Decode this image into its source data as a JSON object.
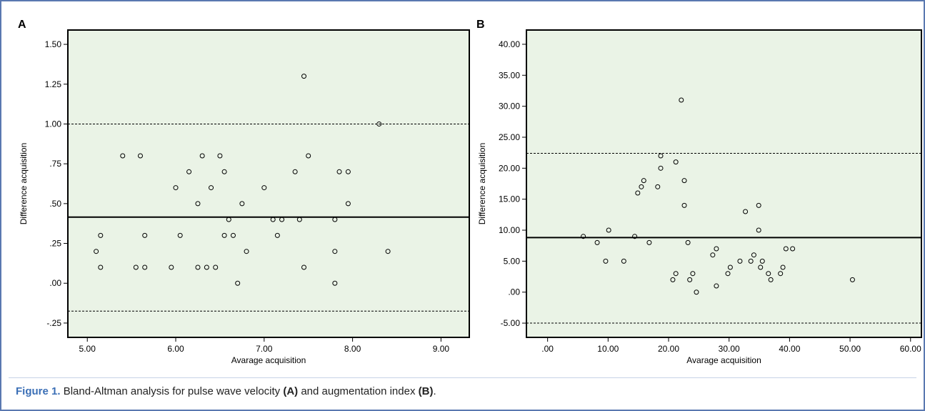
{
  "chart_data": [
    {
      "type": "scatter",
      "panel_label": "A",
      "xlabel": "Avarage acquisition",
      "ylabel": "Difference acquisition",
      "background": "#eaf3e6",
      "marker_color": "#000000",
      "x": [
        5.1,
        5.15,
        5.15,
        5.4,
        5.55,
        5.6,
        5.65,
        5.65,
        5.95,
        6.0,
        6.05,
        6.15,
        6.25,
        6.25,
        6.3,
        6.35,
        6.4,
        6.45,
        6.5,
        6.55,
        6.55,
        6.6,
        6.65,
        6.7,
        6.75,
        6.8,
        7.0,
        7.1,
        7.15,
        7.2,
        7.35,
        7.4,
        7.45,
        7.45,
        7.5,
        7.8,
        7.8,
        7.8,
        7.85,
        7.95,
        7.95,
        8.3,
        8.4
      ],
      "y": [
        0.2,
        0.3,
        0.1,
        0.8,
        0.1,
        0.8,
        0.3,
        0.1,
        0.1,
        0.6,
        0.3,
        0.7,
        0.5,
        0.1,
        0.8,
        0.1,
        0.6,
        0.1,
        0.8,
        0.7,
        0.3,
        0.4,
        0.3,
        0.0,
        0.5,
        0.2,
        0.6,
        0.4,
        0.3,
        0.4,
        0.7,
        0.4,
        1.3,
        0.1,
        0.8,
        0.4,
        0.2,
        0.0,
        0.7,
        0.7,
        0.5,
        1.0,
        0.2
      ],
      "xlim": [
        4.78,
        9.32
      ],
      "ylim": [
        -0.34,
        1.59
      ],
      "xticks": [
        {
          "value": 5,
          "label": "5.00"
        },
        {
          "value": 6,
          "label": "6.00"
        },
        {
          "value": 7,
          "label": "7.00"
        },
        {
          "value": 8,
          "label": "8.00"
        },
        {
          "value": 9,
          "label": "9.00"
        }
      ],
      "yticks": [
        {
          "value": -0.25,
          "label": "-.25"
        },
        {
          "value": 0,
          "label": ".00"
        },
        {
          "value": 0.25,
          "label": ".25"
        },
        {
          "value": 0.5,
          "label": ".50"
        },
        {
          "value": 0.75,
          "label": ".75"
        },
        {
          "value": 1,
          "label": "1.00"
        },
        {
          "value": 1.25,
          "label": "1.25"
        },
        {
          "value": 1.5,
          "label": "1.50"
        }
      ],
      "lines": [
        {
          "value": 0.415,
          "style": "solid"
        },
        {
          "value": 1.0,
          "style": "dashed"
        },
        {
          "value": -0.175,
          "style": "dashed"
        }
      ]
    },
    {
      "type": "scatter",
      "panel_label": "B",
      "xlabel": "Avarage acquisition",
      "ylabel": "Difference acquisition",
      "background": "#eaf3e6",
      "marker_color": "#000000",
      "x": [
        5.9,
        8.2,
        9.6,
        10.1,
        12.6,
        14.4,
        14.9,
        15.5,
        15.9,
        16.8,
        18.2,
        18.7,
        18.7,
        20.7,
        21.2,
        21.2,
        22.1,
        22.6,
        22.6,
        23.2,
        23.5,
        24.0,
        24.6,
        27.3,
        27.9,
        27.9,
        29.8,
        30.2,
        31.8,
        32.7,
        33.6,
        34.1,
        34.9,
        34.9,
        35.2,
        35.5,
        36.5,
        36.9,
        38.5,
        38.9,
        39.4,
        40.5,
        50.4
      ],
      "y": [
        9,
        8,
        5,
        10,
        5,
        9,
        16,
        17,
        18,
        8,
        17,
        20,
        22,
        2,
        3,
        21,
        31,
        18,
        14,
        8,
        2,
        3,
        0,
        6,
        7,
        1,
        3,
        4,
        5,
        13,
        5,
        6,
        14,
        10,
        4,
        5,
        3,
        2,
        3,
        4,
        7,
        7,
        2
      ],
      "xlim": [
        -3.5,
        61.8
      ],
      "ylim": [
        -7.3,
        42.3
      ],
      "xticks": [
        {
          "value": 0,
          "label": ".00"
        },
        {
          "value": 10,
          "label": "10.00"
        },
        {
          "value": 20,
          "label": "20.00"
        },
        {
          "value": 30,
          "label": "30.00"
        },
        {
          "value": 40,
          "label": "40.00"
        },
        {
          "value": 50,
          "label": "50.00"
        },
        {
          "value": 60,
          "label": "60.00"
        }
      ],
      "yticks": [
        {
          "value": -5,
          "label": "-5.00"
        },
        {
          "value": 0,
          "label": ".00"
        },
        {
          "value": 5,
          "label": "5.00"
        },
        {
          "value": 10,
          "label": "10.00"
        },
        {
          "value": 15,
          "label": "15.00"
        },
        {
          "value": 20,
          "label": "20.00"
        },
        {
          "value": 25,
          "label": "25.00"
        },
        {
          "value": 30,
          "label": "30.00"
        },
        {
          "value": 35,
          "label": "35.00"
        },
        {
          "value": 40,
          "label": "40.00"
        }
      ],
      "lines": [
        {
          "value": 8.8,
          "style": "solid"
        },
        {
          "value": 22.4,
          "style": "dashed"
        },
        {
          "value": -5.0,
          "style": "dashed"
        }
      ]
    }
  ],
  "caption": {
    "label": "Figure 1.",
    "parts": [
      "Bland-Altman analysis for pulse wave velocity ",
      "(A)",
      " and augmentation index ",
      "(B)",
      "."
    ]
  }
}
